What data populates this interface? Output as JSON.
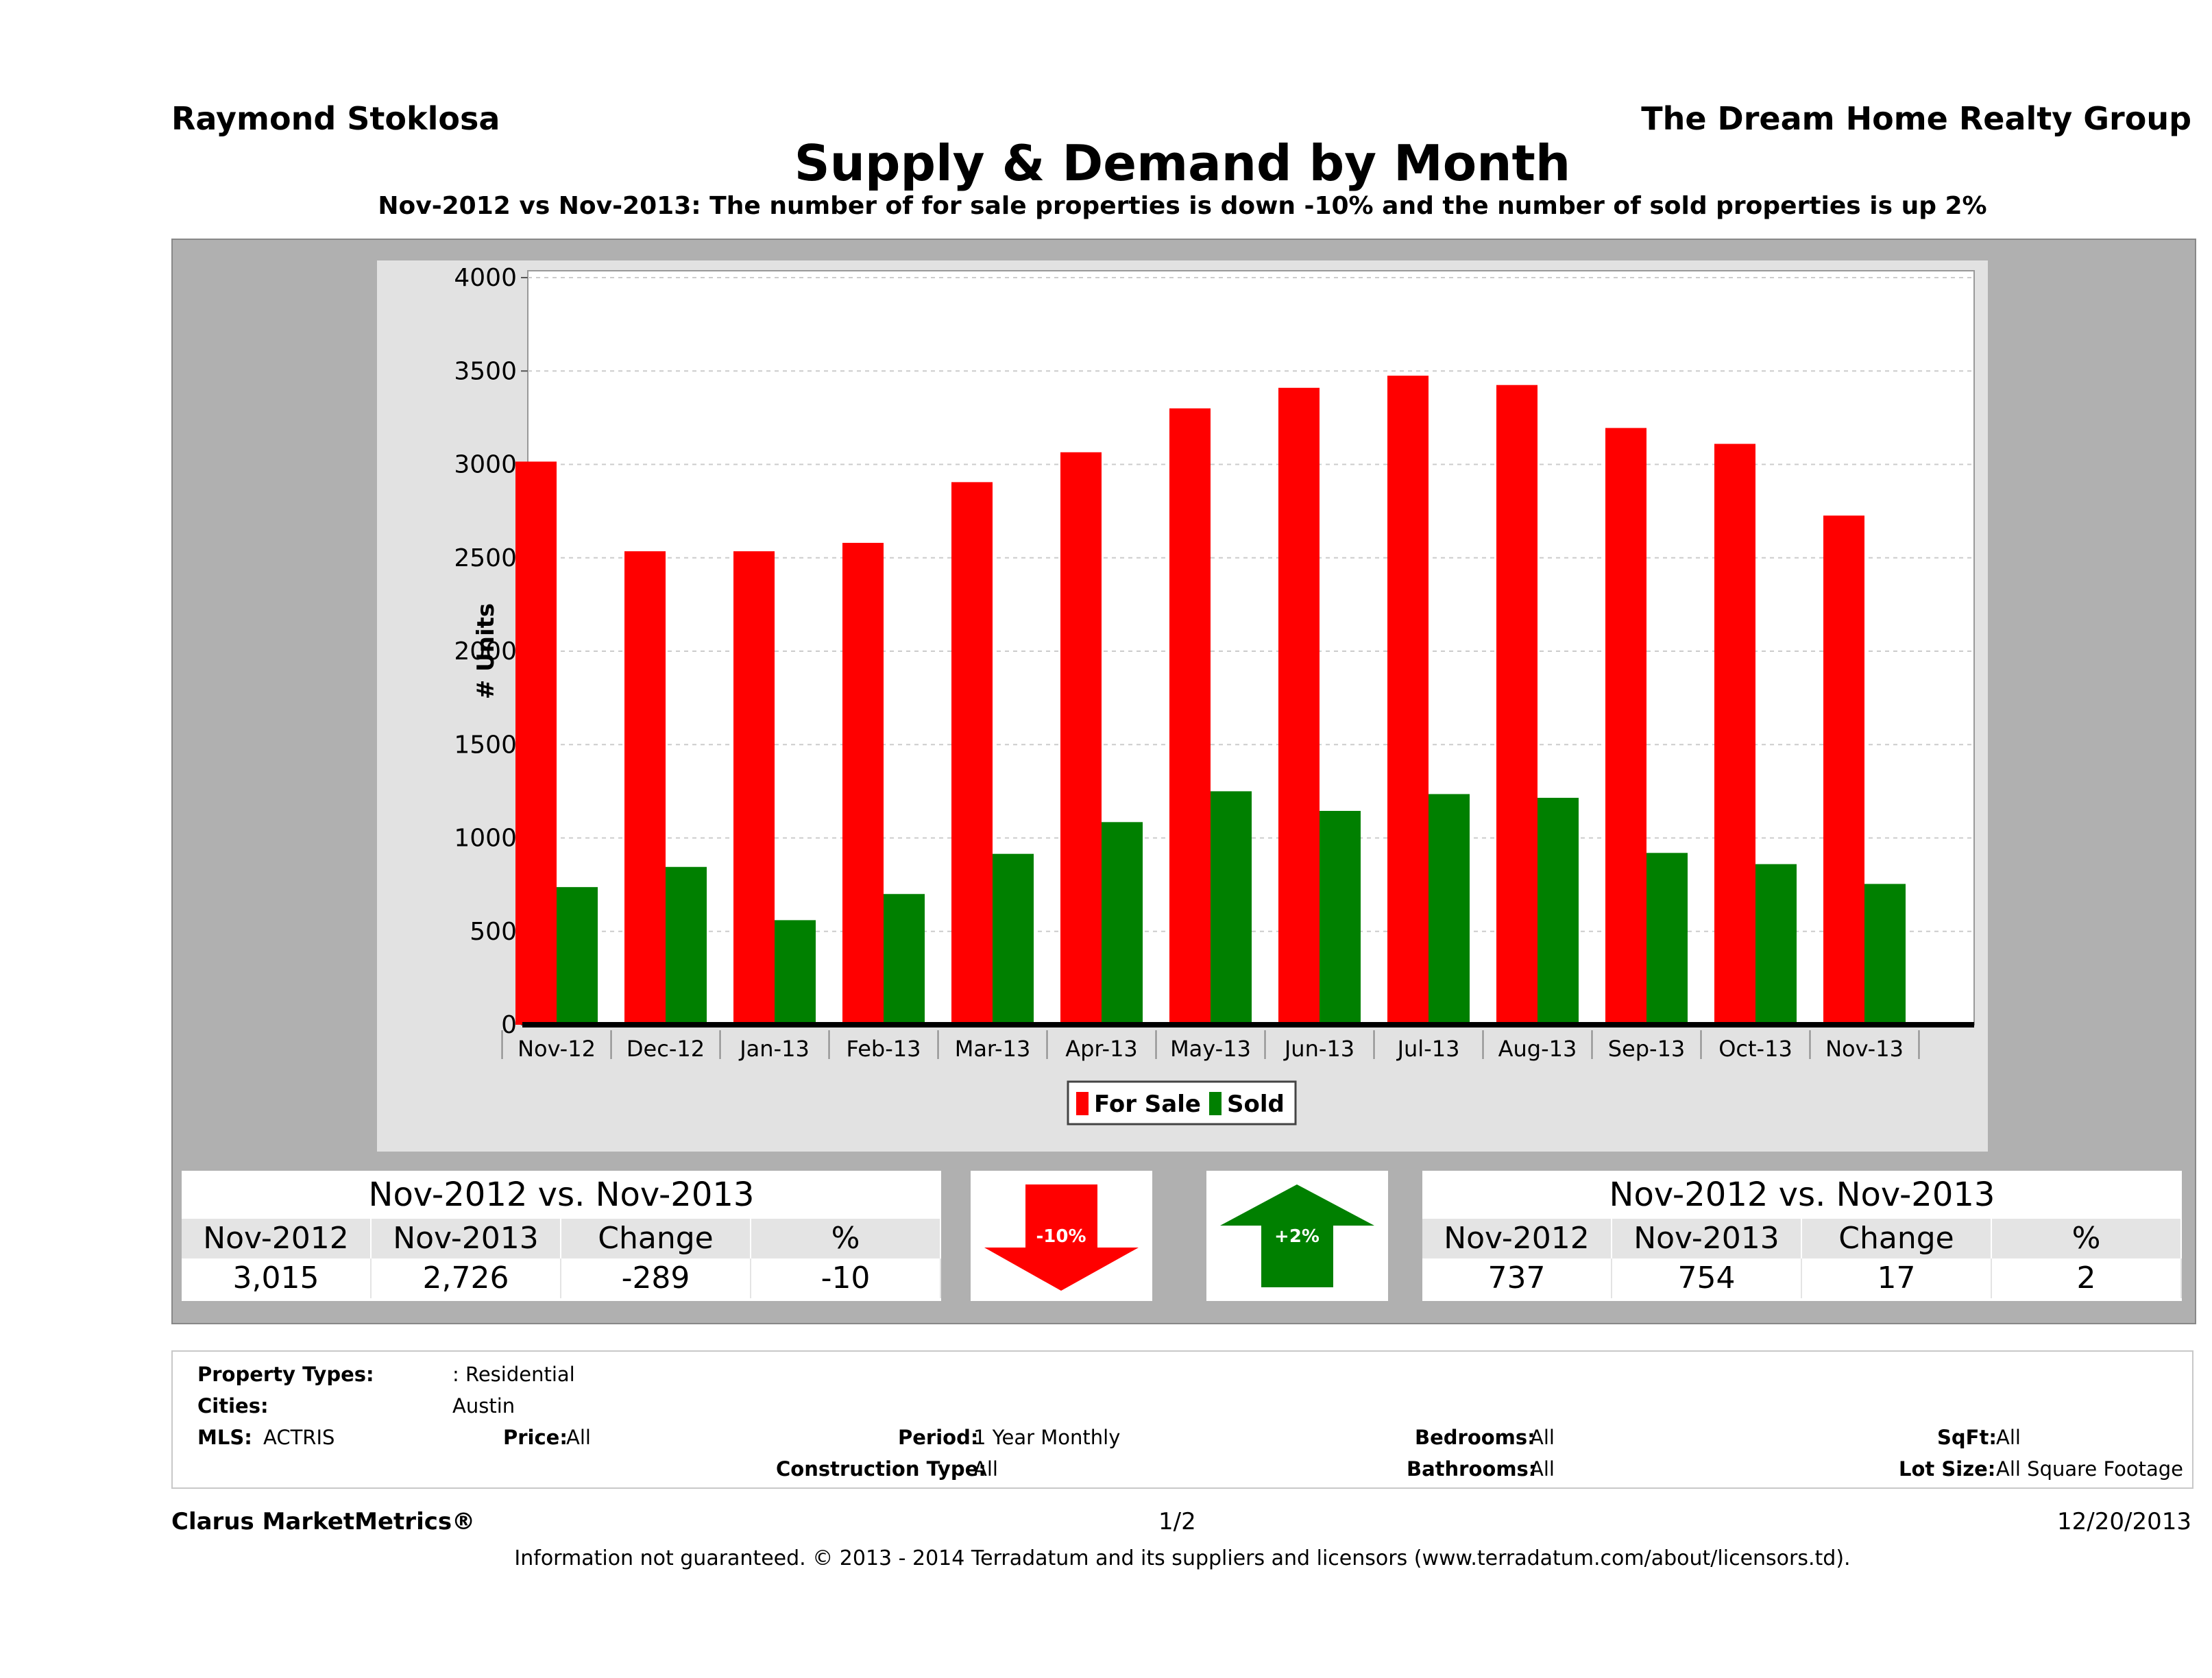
{
  "header": {
    "agent": "Raymond Stoklosa",
    "company": "The Dream Home Realty Group",
    "title": "Supply & Demand by Month",
    "subtitle": "Nov-2012 vs Nov-2013: The number of for sale properties is down -10% and the number of sold properties is up 2%"
  },
  "chart_data": {
    "type": "bar",
    "ylabel": "# Units",
    "ylim": [
      0,
      4000
    ],
    "yticks": [
      0,
      500,
      1000,
      1500,
      2000,
      2500,
      3000,
      3500,
      4000
    ],
    "categories": [
      "Nov-12",
      "Dec-12",
      "Jan-13",
      "Feb-13",
      "Mar-13",
      "Apr-13",
      "May-13",
      "Jun-13",
      "Jul-13",
      "Aug-13",
      "Sep-13",
      "Oct-13",
      "Nov-13"
    ],
    "series": [
      {
        "name": "For Sale",
        "color": "#ff0000",
        "values": [
          3015,
          2535,
          2535,
          2580,
          2905,
          3065,
          3300,
          3410,
          3475,
          3425,
          3195,
          3110,
          2726
        ]
      },
      {
        "name": "Sold",
        "color": "#008000",
        "values": [
          737,
          845,
          560,
          700,
          915,
          1085,
          1250,
          1145,
          1235,
          1215,
          920,
          860,
          754
        ]
      }
    ],
    "grid": true,
    "legend": "bottom"
  },
  "forsale_table": {
    "title": "Nov-2012 vs. Nov-2013",
    "headers": [
      "Nov-2012",
      "Nov-2013",
      "Change",
      "%"
    ],
    "values": [
      "3,015",
      "2,726",
      "-289",
      "-10"
    ]
  },
  "sold_table": {
    "title": "Nov-2012 vs. Nov-2013",
    "headers": [
      "Nov-2012",
      "Nov-2013",
      "Change",
      "%"
    ],
    "values": [
      "737",
      "754",
      "17",
      "2"
    ]
  },
  "indicators": {
    "down_label": "-10%",
    "down_color": "#ff0000",
    "up_label": "+2%",
    "up_color": "#008000"
  },
  "filters": {
    "property_types_label": "Property Types:",
    "property_types_value": ": Residential",
    "cities_label": "Cities:",
    "cities_value": "Austin",
    "mls_label": "MLS:",
    "mls_value": "ACTRIS",
    "price_label": "Price:",
    "price_value": "All",
    "period_label": "Period:",
    "period_value": "1 Year Monthly",
    "construction_label": "Construction Type:",
    "construction_value": "All",
    "bedrooms_label": "Bedrooms:",
    "bedrooms_value": "All",
    "bathrooms_label": "Bathrooms:",
    "bathrooms_value": "All",
    "sqft_label": "SqFt:",
    "sqft_value": "All",
    "lotsize_label": "Lot Size:",
    "lotsize_value": "All Square Footage"
  },
  "footer": {
    "brand": "Clarus MarketMetrics®",
    "page": "1/2",
    "date": "12/20/2013",
    "disclaimer": "Information not guaranteed. © 2013 - 2014 Terradatum and its suppliers and licensors (www.terradatum.com/about/licensors.td)."
  }
}
